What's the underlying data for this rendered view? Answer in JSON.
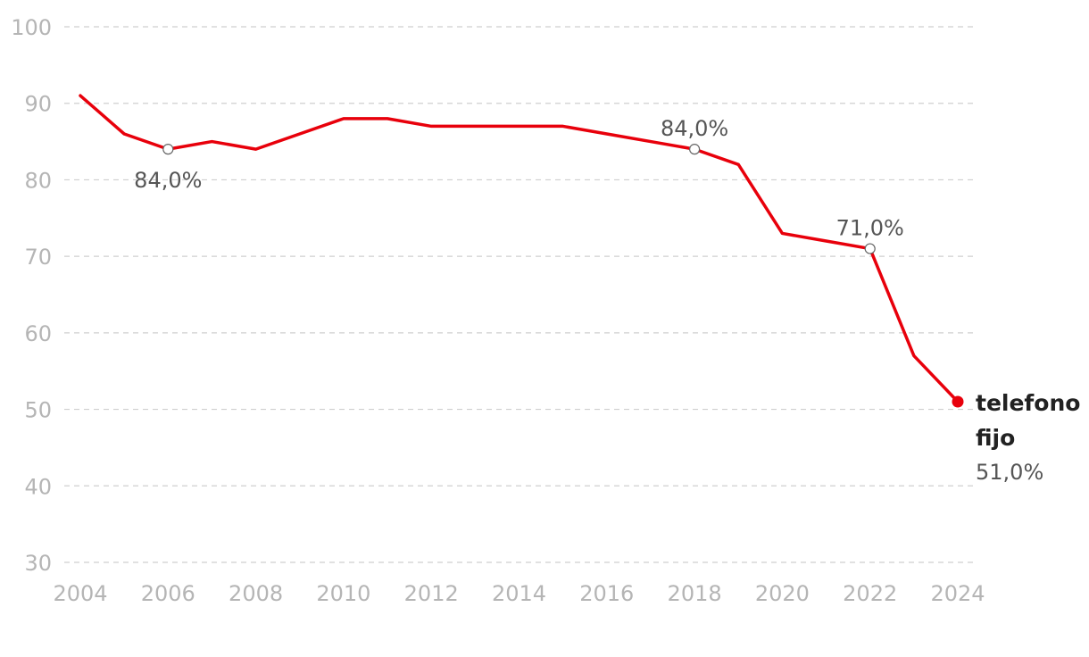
{
  "chart_data": {
    "type": "line",
    "title": "",
    "xlabel": "",
    "ylabel": "",
    "ylim": [
      30,
      100
    ],
    "xlim": [
      2004,
      2024
    ],
    "yticks": [
      "100",
      "90",
      "80",
      "70",
      "60",
      "50",
      "40",
      "30"
    ],
    "xticks": [
      "2004",
      "2006",
      "2008",
      "2010",
      "2012",
      "2014",
      "2016",
      "2018",
      "2020",
      "2022",
      "2024"
    ],
    "grid": true,
    "series": [
      {
        "name": "telefono fijo",
        "color": "#e8000b",
        "x": [
          2004,
          2005,
          2006,
          2007,
          2008,
          2009,
          2010,
          2011,
          2012,
          2013,
          2014,
          2015,
          2016,
          2017,
          2018,
          2019,
          2020,
          2021,
          2022,
          2023,
          2024
        ],
        "values": [
          91,
          86,
          84,
          85,
          84,
          86,
          88,
          88,
          87,
          87,
          87,
          87,
          86,
          85,
          84,
          82,
          73,
          72,
          71,
          57,
          51
        ]
      }
    ],
    "annotations": [
      {
        "x": 2006,
        "y": 84,
        "label": "84,0%",
        "position": "below"
      },
      {
        "x": 2018,
        "y": 84,
        "label": "84,0%",
        "position": "above"
      },
      {
        "x": 2022,
        "y": 71,
        "label": "71,0%",
        "position": "above"
      }
    ],
    "end_label": {
      "name_line1": "telefono",
      "name_line2": "fijo",
      "value": "51,0%"
    }
  }
}
